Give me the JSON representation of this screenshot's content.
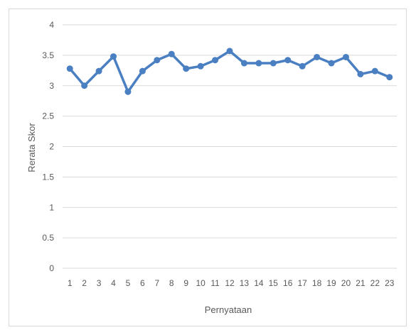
{
  "chart_data": {
    "type": "line",
    "title": "",
    "xlabel": "Pernyataan",
    "ylabel": "Rerata Skor",
    "categories": [
      "1",
      "2",
      "3",
      "4",
      "5",
      "6",
      "7",
      "8",
      "9",
      "10",
      "11",
      "12",
      "13",
      "14",
      "15",
      "16",
      "17",
      "18",
      "19",
      "20",
      "21",
      "22",
      "23"
    ],
    "series": [
      {
        "values": [
          3.28,
          3.0,
          3.24,
          3.48,
          2.9,
          3.24,
          3.42,
          3.52,
          3.28,
          3.32,
          3.42,
          3.57,
          3.37,
          3.37,
          3.37,
          3.42,
          3.32,
          3.47,
          3.37,
          3.47,
          3.19,
          3.24,
          3.14
        ],
        "color": "#4a7fc1"
      }
    ],
    "ylim": [
      0,
      4
    ],
    "yticks": [
      "0",
      "0.5",
      "1",
      "1.5",
      "2",
      "2.5",
      "3",
      "3.5",
      "4"
    ],
    "grid": true,
    "legend": "none"
  }
}
